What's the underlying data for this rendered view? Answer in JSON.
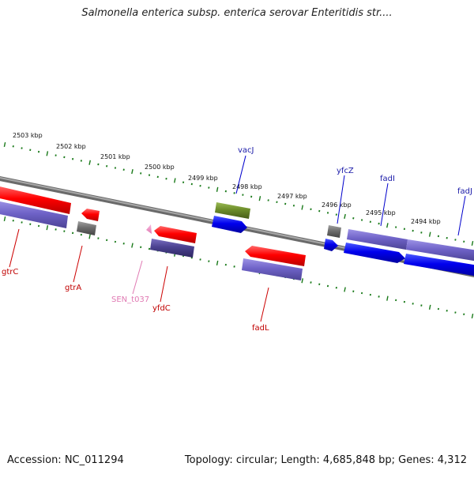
{
  "title": "Salmonella enterica subsp. enterica serovar Enteritidis str....",
  "footer": {
    "accession": "Accession: NC_011294",
    "summary": "Topology: circular; Length: 4,685,848 bp; Genes: 4,312"
  },
  "colors": {
    "backbone": "#888888",
    "ticks": "#1a7a1a",
    "red": "#ff0000",
    "blue": "#0000ee",
    "purple": "#6f63c8",
    "darkpurple": "#4b4190",
    "gray": "#6e6e6e",
    "olive": "#6c8c2a",
    "pink": "#f08bc4"
  },
  "scale_labels": [
    "2503 kbp",
    "2502 kbp",
    "2501 kbp",
    "2500 kbp",
    "2499 kbp",
    "2498 kbp",
    "2497 kbp",
    "2496 kbp",
    "2495 kbp",
    "2494 kbp"
  ],
  "gene_labels": [
    "vacJ",
    "yfcZ",
    "fadI",
    "fadJ",
    "gtrC",
    "gtrA",
    "SEN_t037",
    "yfdC",
    "fadL"
  ]
}
